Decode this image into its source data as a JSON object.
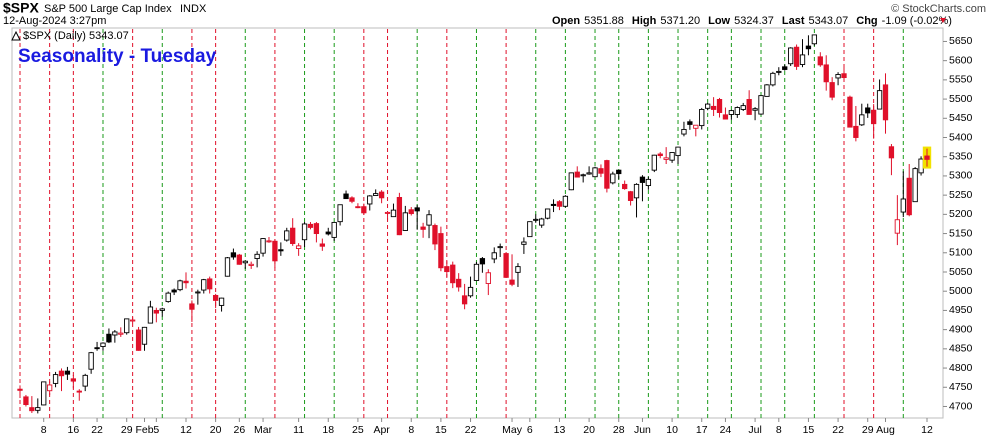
{
  "header": {
    "symbol": "$SPX",
    "name": "S&P 500 Large Cap Index",
    "exchange": "INDX",
    "timestamp": "12-Aug-2024 3:27pm",
    "stats": [
      {
        "label": "Open",
        "value": "5351.88"
      },
      {
        "label": "High",
        "value": "5371.20"
      },
      {
        "label": "Low",
        "value": "5324.37"
      },
      {
        "label": "Last",
        "value": "5343.07"
      },
      {
        "label": "Chg",
        "value": "-1.09 (-0.02%)"
      }
    ],
    "copyright": "© StockCharts.com"
  },
  "chart_data": {
    "type": "candlestick",
    "title": "Seasonality - Tuesday",
    "legend": "$SPX (Daily) 5343.07",
    "categories": [
      null,
      null,
      null,
      null,
      "8",
      null,
      null,
      null,
      null,
      "16",
      null,
      null,
      null,
      "22",
      null,
      null,
      null,
      null,
      "29",
      null,
      null,
      "Feb",
      null,
      "5",
      null,
      null,
      null,
      null,
      "12",
      null,
      null,
      null,
      null,
      "20",
      null,
      null,
      null,
      "26",
      null,
      null,
      null,
      "Mar",
      null,
      null,
      null,
      null,
      null,
      "11",
      null,
      null,
      null,
      null,
      "18",
      null,
      null,
      null,
      null,
      "25",
      null,
      null,
      null,
      "Apr",
      null,
      null,
      null,
      null,
      "8",
      null,
      null,
      null,
      null,
      "15",
      null,
      null,
      null,
      null,
      "22",
      null,
      null,
      null,
      null,
      null,
      null,
      "May",
      null,
      null,
      "6",
      null,
      null,
      null,
      null,
      "13",
      null,
      null,
      null,
      null,
      "20",
      null,
      null,
      null,
      null,
      "28",
      null,
      null,
      null,
      "Jun",
      null,
      null,
      null,
      null,
      "10",
      null,
      null,
      null,
      null,
      "17",
      null,
      null,
      null,
      "24",
      null,
      null,
      null,
      null,
      "Jul",
      null,
      null,
      null,
      "8",
      null,
      null,
      null,
      null,
      "15",
      null,
      null,
      null,
      null,
      "22",
      null,
      null,
      null,
      null,
      "29",
      null,
      null,
      "Aug",
      null,
      null,
      null,
      null,
      null,
      null,
      "12"
    ],
    "series": [
      {
        "open": [
          4745,
          4725,
          4697,
          4690,
          4704,
          4741,
          4760,
          4792,
          4792,
          4772,
          4740,
          4753,
          4797,
          4853,
          4856,
          4888,
          4886,
          4888,
          4892,
          4925,
          4899,
          4862,
          4917,
          4950,
          4950,
          4973,
          5003,
          5004,
          5026,
          4967,
          4996,
          5003,
          5032,
          4989,
          4963,
          5039,
          5100,
          5094,
          5074,
          5067,
          5085,
          5099,
          5131,
          5130,
          5108,
          5133,
          5164,
          5111,
          5134,
          5174,
          5176,
          5123,
          5154,
          5140,
          5181,
          5253,
          5243,
          5220,
          5220,
          5227,
          5249,
          5258,
          5204,
          5194,
          5244,
          5158,
          5212,
          5217,
          5167,
          5172,
          5171,
          5150,
          5064,
          5068,
          5031,
          4988,
          4988,
          5028,
          5085,
          5020,
          5084,
          5114,
          5098,
          5029,
          5049,
          5122,
          5142,
          5187,
          5172,
          5190,
          5226,
          5233,
          5221,
          5264,
          5310,
          5303,
          5305,
          5298,
          5319,
          5340,
          5282,
          5315,
          5278,
          5259,
          5243,
          5297,
          5275,
          5315,
          5357,
          5343,
          5341,
          5353,
          5409,
          5441,
          5424,
          5431,
          5476,
          5481,
          5499,
          5459,
          5460,
          5460,
          5473,
          5499,
          5471,
          5461,
          5507,
          5537,
          5572,
          5584,
          5592,
          5635,
          5590,
          5638,
          5644,
          5610,
          5589,
          5543,
          5555,
          5566,
          5505,
          5429,
          5433,
          5477,
          5471,
          5474,
          5537,
          5376,
          5151,
          5206,
          5294,
          5233,
          5308,
          5351.88
        ],
        "high": [
          4755,
          4730,
          4727,
          4721,
          4765,
          4765,
          4790,
          4799,
          4803,
          4782,
          4745,
          4785,
          4842,
          4868,
          4867,
          4903,
          4899,
          4906,
          4929,
          4932,
          4907,
          4907,
          4975,
          4957,
          4957,
          4999,
          5007,
          5030,
          5049,
          4976,
          5004,
          5032,
          5038,
          4993,
          4983,
          5089,
          5111,
          5097,
          5080,
          5077,
          5104,
          5138,
          5141,
          5135,
          5127,
          5165,
          5190,
          5125,
          5180,
          5180,
          5180,
          5137,
          5165,
          5180,
          5225,
          5262,
          5247,
          5229,
          5228,
          5250,
          5265,
          5263,
          5208,
          5228,
          5256,
          5222,
          5219,
          5224,
          5178,
          5211,
          5176,
          5168,
          5078,
          5077,
          5047,
          5019,
          5038,
          5076,
          5089,
          5057,
          5114,
          5124,
          5102,
          5096,
          5073,
          5140,
          5181,
          5200,
          5191,
          5215,
          5239,
          5237,
          5250,
          5309,
          5325,
          5306,
          5325,
          5324,
          5330,
          5342,
          5311,
          5315,
          5288,
          5261,
          5281,
          5302,
          5298,
          5355,
          5362,
          5375,
          5362,
          5376,
          5441,
          5447,
          5432,
          5477,
          5490,
          5505,
          5503,
          5478,
          5472,
          5481,
          5490,
          5523,
          5479,
          5509,
          5539,
          5571,
          5583,
          5590,
          5635,
          5642,
          5656,
          5666,
          5667,
          5622,
          5614,
          5557,
          5570,
          5585,
          5509,
          5482,
          5488,
          5488,
          5487,
          5551,
          5567,
          5383,
          5250,
          5312,
          5331,
          5323,
          5351,
          5371.2
        ],
        "low": [
          4722,
          4700,
          4683,
          4682,
          4703,
          4730,
          4750,
          4740,
          4769,
          4747,
          4715,
          4740,
          4785,
          4845,
          4845,
          4865,
          4866,
          4881,
          4887,
          4917,
          4845,
          4845,
          4917,
          4919,
          4934,
          4970,
          4990,
          5000,
          5007,
          4920,
          4965,
          4994,
          4994,
          4956,
          4947,
          5038,
          5082,
          5069,
          5058,
          5058,
          5062,
          5090,
          5126,
          5061,
          5092,
          5129,
          5118,
          5092,
          5115,
          5161,
          5127,
          5105,
          5145,
          5131,
          5171,
          5240,
          5229,
          5216,
          5199,
          5210,
          5248,
          5229,
          5184,
          5194,
          5146,
          5157,
          5197,
          5160,
          5139,
          5138,
          5107,
          5052,
          5037,
          5008,
          4999,
          4953,
          4983,
          5028,
          5048,
          4990,
          5073,
          5089,
          5035,
          5013,
          5011,
          5097,
          5142,
          5178,
          5165,
          5187,
          5206,
          5211,
          5218,
          5263,
          5296,
          5283,
          5303,
          5298,
          5297,
          5257,
          5278,
          5291,
          5264,
          5223,
          5192,
          5234,
          5264,
          5310,
          5346,
          5331,
          5334,
          5331,
          5403,
          5420,
          5403,
          5421,
          5471,
          5456,
          5452,
          5447,
          5446,
          5451,
          5469,
          5460,
          5445,
          5459,
          5507,
          5533,
          5562,
          5574,
          5586,
          5576,
          5583,
          5614,
          5639,
          5584,
          5522,
          5497,
          5536,
          5555,
          5427,
          5390,
          5430,
          5451,
          5397,
          5474,
          5410,
          5302,
          5120,
          5193,
          5195,
          5233,
          5301,
          5324.37
        ],
        "close": [
          4742,
          4705,
          4689,
          4697,
          4764,
          4756,
          4783,
          4780,
          4784,
          4766,
          4739,
          4781,
          4840,
          4851,
          4865,
          4868,
          4894,
          4891,
          4928,
          4925,
          4846,
          4906,
          4959,
          4943,
          4954,
          4995,
          4998,
          5027,
          5022,
          4953,
          4998,
          5030,
          5006,
          4976,
          4982,
          5087,
          5089,
          5070,
          5078,
          5070,
          5096,
          5137,
          5131,
          5079,
          5105,
          5157,
          5124,
          5118,
          5175,
          5166,
          5150,
          5117,
          5149,
          5179,
          5225,
          5241,
          5234,
          5218,
          5204,
          5248,
          5254,
          5243,
          5205,
          5211,
          5147,
          5204,
          5202,
          5209,
          5161,
          5199,
          5123,
          5061,
          5051,
          5022,
          5011,
          4967,
          5010,
          5070,
          5071,
          5048,
          5100,
          5116,
          5036,
          5018,
          5064,
          5128,
          5181,
          5187,
          5188,
          5214,
          5223,
          5221,
          5247,
          5308,
          5297,
          5303,
          5308,
          5321,
          5307,
          5268,
          5305,
          5306,
          5267,
          5236,
          5278,
          5283,
          5291,
          5354,
          5353,
          5347,
          5361,
          5375,
          5421,
          5434,
          5432,
          5473,
          5487,
          5473,
          5465,
          5448,
          5470,
          5478,
          5483,
          5460,
          5475,
          5509,
          5537,
          5567,
          5572,
          5577,
          5633,
          5585,
          5615,
          5631,
          5667,
          5589,
          5545,
          5505,
          5564,
          5556,
          5427,
          5400,
          5459,
          5464,
          5436,
          5522,
          5446,
          5347,
          5186,
          5240,
          5199,
          5319,
          5344,
          5343.07
        ]
      }
    ],
    "colors": {
      "up": "#000000",
      "down": "#e0102a",
      "highlight": "#f2e200"
    },
    "vlines": {
      "colors": {
        "u": "#1a9a1a",
        "d": "#e0102a"
      },
      "values": [
        "d",
        null,
        null,
        null,
        null,
        "d",
        null,
        null,
        null,
        "d",
        null,
        null,
        null,
        null,
        "u",
        null,
        null,
        null,
        null,
        "d",
        null,
        null,
        null,
        null,
        "u",
        null,
        null,
        null,
        null,
        "d",
        null,
        null,
        null,
        "d",
        null,
        null,
        null,
        null,
        "u",
        null,
        null,
        null,
        null,
        "d",
        null,
        null,
        null,
        null,
        "u",
        null,
        null,
        null,
        null,
        "u",
        null,
        null,
        null,
        null,
        "d",
        null,
        null,
        null,
        "d",
        null,
        null,
        null,
        null,
        "u",
        null,
        null,
        null,
        null,
        "d",
        null,
        null,
        null,
        null,
        "u",
        null,
        null,
        null,
        null,
        "d",
        null,
        null,
        null,
        null,
        "u",
        null,
        null,
        null,
        null,
        "u",
        null,
        null,
        null,
        null,
        "u",
        null,
        null,
        null,
        "u",
        null,
        null,
        null,
        null,
        "u",
        null,
        null,
        null,
        null,
        "u",
        null,
        null,
        null,
        null,
        "u",
        null,
        null,
        null,
        "u",
        null,
        null,
        null,
        null,
        "u",
        null,
        null,
        null,
        "u",
        null,
        null,
        null,
        null,
        "u",
        null,
        null,
        null,
        null,
        "d",
        null,
        null,
        null,
        null,
        "d",
        null,
        null,
        null,
        null,
        "u",
        null,
        null,
        null,
        null
      ]
    },
    "ylim": [
      4670,
      5685
    ],
    "yticks": [
      4700,
      4750,
      4800,
      4850,
      4900,
      4950,
      5000,
      5050,
      5100,
      5150,
      5200,
      5250,
      5300,
      5350,
      5400,
      5450,
      5500,
      5550,
      5600,
      5650
    ]
  }
}
